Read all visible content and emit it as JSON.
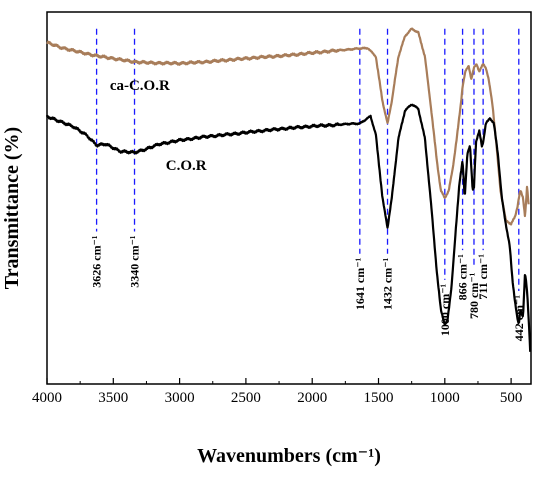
{
  "chart_data": {
    "type": "line",
    "title": "",
    "xlabel": "Wavenumbers (cm⁻¹)",
    "ylabel": "Transmittance (%)",
    "x_reversed": true,
    "xlim": [
      4000,
      350
    ],
    "ylim": [
      0,
      1
    ],
    "y_ticks_shown": false,
    "grid": false,
    "legend": "none",
    "x_ticks": [
      4000,
      3500,
      3000,
      2500,
      2000,
      1500,
      1000,
      500
    ],
    "x_tick_labels": [
      "4000",
      "3500",
      "3000",
      "2500",
      "2000",
      "1500",
      "1000",
      "500"
    ],
    "series": [
      {
        "name": "ca-C.O.R",
        "color": "#a87d5a",
        "x": [
          4000,
          3900,
          3800,
          3700,
          3626,
          3550,
          3450,
          3340,
          3200,
          3000,
          2800,
          2600,
          2400,
          2200,
          2000,
          1800,
          1700,
          1641,
          1580,
          1520,
          1470,
          1432,
          1400,
          1350,
          1300,
          1250,
          1200,
          1150,
          1100,
          1060,
          1030,
          1000,
          970,
          940,
          910,
          880,
          866,
          845,
          820,
          800,
          780,
          760,
          740,
          711,
          690,
          670,
          640,
          610,
          580,
          540,
          500,
          470,
          450,
          442,
          430,
          410,
          395,
          380,
          365
        ],
        "y": [
          0.918,
          0.905,
          0.896,
          0.888,
          0.882,
          0.878,
          0.872,
          0.866,
          0.863,
          0.862,
          0.866,
          0.872,
          0.878,
          0.883,
          0.89,
          0.897,
          0.9,
          0.902,
          0.903,
          0.88,
          0.76,
          0.7,
          0.76,
          0.88,
          0.935,
          0.955,
          0.945,
          0.88,
          0.73,
          0.6,
          0.52,
          0.5,
          0.52,
          0.58,
          0.66,
          0.75,
          0.8,
          0.84,
          0.855,
          0.82,
          0.85,
          0.86,
          0.84,
          0.86,
          0.85,
          0.82,
          0.75,
          0.64,
          0.52,
          0.44,
          0.43,
          0.45,
          0.48,
          0.5,
          0.52,
          0.5,
          0.45,
          0.53,
          0.47
        ]
      },
      {
        "name": "C.O.R",
        "color": "#000000",
        "x": [
          4000,
          3900,
          3800,
          3700,
          3626,
          3560,
          3450,
          3340,
          3250,
          3150,
          3000,
          2800,
          2600,
          2400,
          2200,
          2000,
          1800,
          1700,
          1641,
          1600,
          1560,
          1520,
          1470,
          1432,
          1400,
          1350,
          1300,
          1250,
          1200,
          1150,
          1100,
          1060,
          1030,
          1000,
          980,
          950,
          920,
          890,
          866,
          850,
          830,
          810,
          790,
          780,
          765,
          740,
          720,
          711,
          690,
          660,
          630,
          600,
          570,
          540,
          510,
          490,
          470,
          450,
          442,
          430,
          410,
          395,
          380,
          365,
          355
        ],
        "y": [
          0.72,
          0.705,
          0.692,
          0.668,
          0.642,
          0.645,
          0.626,
          0.622,
          0.632,
          0.645,
          0.655,
          0.665,
          0.672,
          0.68,
          0.687,
          0.693,
          0.697,
          0.7,
          0.7,
          0.71,
          0.72,
          0.67,
          0.5,
          0.42,
          0.5,
          0.66,
          0.735,
          0.752,
          0.74,
          0.66,
          0.47,
          0.3,
          0.2,
          0.16,
          0.17,
          0.26,
          0.4,
          0.54,
          0.6,
          0.5,
          0.62,
          0.64,
          0.52,
          0.53,
          0.65,
          0.68,
          0.64,
          0.65,
          0.7,
          0.715,
          0.7,
          0.62,
          0.5,
          0.43,
          0.37,
          0.28,
          0.22,
          0.17,
          0.16,
          0.2,
          0.18,
          0.3,
          0.25,
          0.16,
          0.08
        ]
      }
    ],
    "annotations": [
      {
        "x": 3626,
        "label": "3626 cm⁻¹"
      },
      {
        "x": 3340,
        "label": "3340 cm⁻¹"
      },
      {
        "x": 1641,
        "label": "1641 cm⁻¹"
      },
      {
        "x": 1432,
        "label": "1432 cm⁻¹"
      },
      {
        "x": 1000,
        "label": "1000 cm⁻¹"
      },
      {
        "x": 866,
        "label": "866 cm⁻¹"
      },
      {
        "x": 780,
        "label": "780 cm⁻¹"
      },
      {
        "x": 711,
        "label": "711 cm⁻¹"
      },
      {
        "x": 442,
        "label": "442 cm⁻¹"
      }
    ],
    "annotation_line_color": "#1a1aff"
  }
}
